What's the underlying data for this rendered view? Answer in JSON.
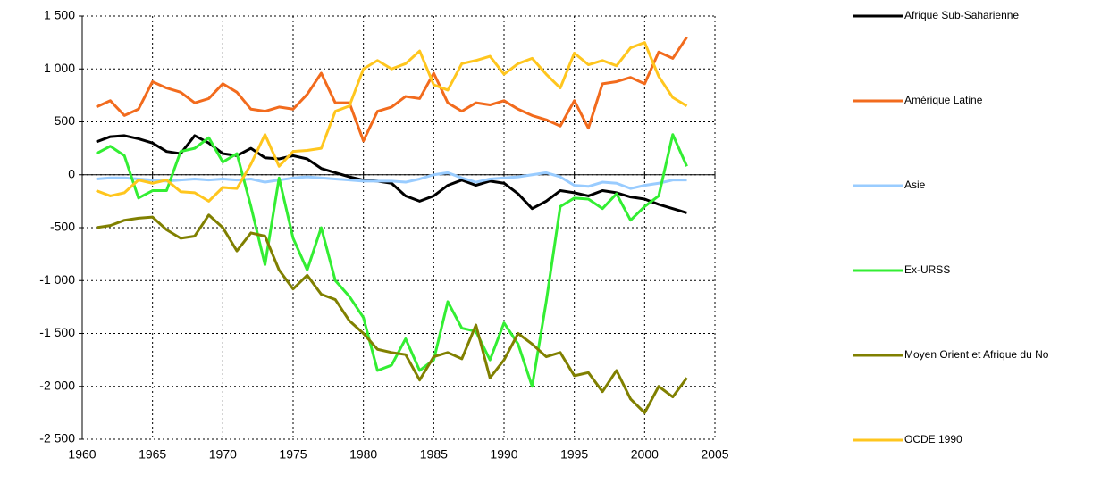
{
  "chart_data": {
    "type": "line",
    "x": [
      1961,
      1962,
      1963,
      1964,
      1965,
      1966,
      1967,
      1968,
      1969,
      1970,
      1971,
      1972,
      1973,
      1974,
      1975,
      1976,
      1977,
      1978,
      1979,
      1980,
      1981,
      1982,
      1983,
      1984,
      1985,
      1986,
      1987,
      1988,
      1989,
      1990,
      1991,
      1992,
      1993,
      1994,
      1995,
      1996,
      1997,
      1998,
      1999,
      2000,
      2001,
      2002,
      2003
    ],
    "series": [
      {
        "name": "Afrique Sub-Saharienne",
        "color": "#000000",
        "values": [
          310,
          360,
          370,
          340,
          300,
          220,
          200,
          370,
          300,
          200,
          180,
          250,
          160,
          150,
          180,
          150,
          60,
          20,
          -20,
          -50,
          -60,
          -80,
          -200,
          -250,
          -200,
          -100,
          -50,
          -100,
          -60,
          -80,
          -180,
          -320,
          -250,
          -150,
          -170,
          -200,
          -150,
          -170,
          -210,
          -230,
          -280,
          -320,
          -360
        ]
      },
      {
        "name": "Amérique Latine",
        "color": "#f26b1d",
        "values": [
          640,
          700,
          560,
          620,
          880,
          820,
          780,
          680,
          720,
          860,
          780,
          620,
          600,
          640,
          620,
          760,
          960,
          680,
          680,
          320,
          600,
          640,
          740,
          720,
          960,
          680,
          600,
          680,
          660,
          700,
          620,
          560,
          520,
          460,
          700,
          440,
          860,
          880,
          920,
          860,
          1160,
          1100,
          1300
        ]
      },
      {
        "name": "Asie",
        "color": "#99ccff",
        "values": [
          -40,
          -30,
          -30,
          -40,
          -50,
          -60,
          -50,
          -40,
          -50,
          -40,
          -50,
          -40,
          -70,
          -50,
          -30,
          -20,
          -30,
          -40,
          -50,
          -60,
          -60,
          -60,
          -70,
          -40,
          0,
          20,
          -30,
          -70,
          -40,
          -30,
          -20,
          0,
          20,
          -20,
          -100,
          -110,
          -70,
          -80,
          -130,
          -100,
          -80,
          -50,
          -50
        ]
      },
      {
        "name": "Ex-URSS",
        "color": "#33ee33",
        "values": [
          200,
          270,
          180,
          -220,
          -150,
          -150,
          220,
          250,
          350,
          120,
          200,
          -300,
          -850,
          -30,
          -600,
          -900,
          -500,
          -1000,
          -1150,
          -1350,
          -1850,
          -1800,
          -1550,
          -1850,
          -1750,
          -1200,
          -1450,
          -1480,
          -1750,
          -1400,
          -1600,
          -2000,
          -1200,
          -300,
          -220,
          -230,
          -320,
          -180,
          -430,
          -300,
          -200,
          380,
          80
        ]
      },
      {
        "name": "Moyen Orient et Afrique du No",
        "color": "#808000",
        "values": [
          -500,
          -480,
          -430,
          -410,
          -400,
          -520,
          -600,
          -580,
          -380,
          -500,
          -720,
          -550,
          -580,
          -900,
          -1080,
          -950,
          -1130,
          -1180,
          -1380,
          -1500,
          -1650,
          -1680,
          -1700,
          -1940,
          -1720,
          -1680,
          -1740,
          -1420,
          -1920,
          -1750,
          -1500,
          -1600,
          -1720,
          -1680,
          -1900,
          -1870,
          -2050,
          -1850,
          -2120,
          -2250,
          -2000,
          -2100,
          -1920
        ]
      },
      {
        "name": "OCDE 1990",
        "color": "#ffc61e",
        "values": [
          -150,
          -200,
          -170,
          -50,
          -80,
          -50,
          -160,
          -170,
          -250,
          -120,
          -130,
          100,
          380,
          80,
          220,
          230,
          250,
          600,
          650,
          1000,
          1080,
          1000,
          1050,
          1170,
          850,
          800,
          1050,
          1080,
          1120,
          950,
          1050,
          1100,
          950,
          820,
          1150,
          1040,
          1080,
          1030,
          1200,
          1250,
          930,
          730,
          650
        ]
      }
    ],
    "xlim": [
      1960,
      2005
    ],
    "xticks": [
      1960,
      1965,
      1970,
      1975,
      1980,
      1985,
      1990,
      1995,
      2000,
      2005
    ],
    "ylim": [
      -2500,
      1500
    ],
    "yticks": [
      {
        "value": 1500,
        "label": "1 500"
      },
      {
        "value": 1000,
        "label": "1 000"
      },
      500,
      0,
      -500,
      {
        "value": -1000,
        "label": "-1 000"
      },
      {
        "value": -1500,
        "label": "-1 500"
      },
      {
        "value": -2000,
        "label": "-2 000"
      },
      {
        "value": -2500,
        "label": "-2 500"
      }
    ],
    "grid": true,
    "legend": "right"
  }
}
